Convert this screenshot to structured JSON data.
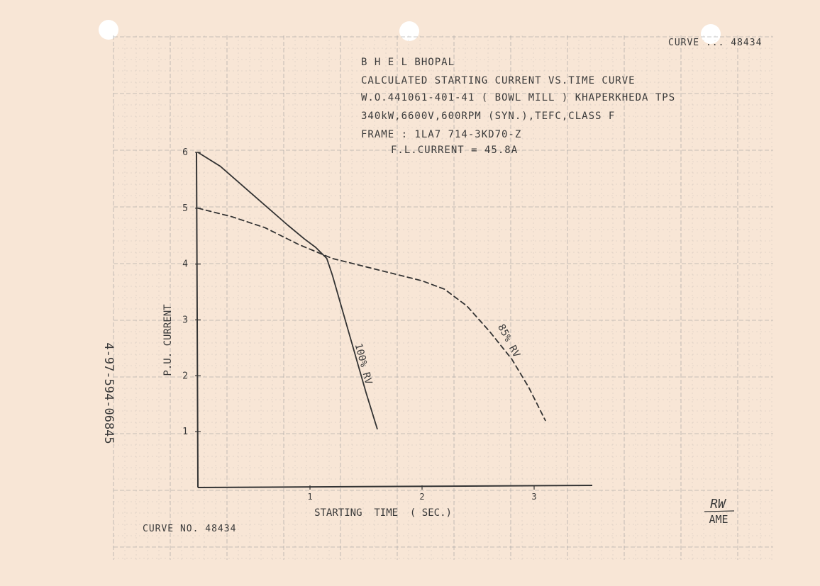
{
  "curve_no_top": "CURVE ... 48434",
  "curve_no_bottom": "CURVE NO. 48434",
  "title_lines": [
    "B H E L  BHOPAL",
    "CALCULATED STARTING CURRENT  VS.TIME CURVE",
    "W.O.441061-401-41  ( BOWL  MILL ) KHAPERKHEDA TPS",
    "340kW,6600V,600RPM (SYN.),TEFC,CLASS  F",
    "FRAME : 1LA7 714-3KD70-Z",
    "F.L.CURRENT = 45.8A"
  ],
  "side_number": "4-97-594-06845",
  "signature": {
    "initials": "RW",
    "title": "AME"
  },
  "colors": {
    "paper": "#f8e6d6",
    "grid": "#9a9a9a",
    "ink": "#3a3a3a"
  },
  "chart_data": {
    "type": "line",
    "title": "CALCULATED STARTING CURRENT  VS.TIME CURVE",
    "xlabel": "STARTING  TIME  ( SEC.)",
    "ylabel": "P.U. CURRENT",
    "xlim": [
      0,
      3.5
    ],
    "ylim": [
      0,
      6
    ],
    "x_ticks": [
      1,
      2,
      3
    ],
    "y_ticks": [
      1,
      2,
      3,
      4,
      5,
      6
    ],
    "grid": true,
    "series": [
      {
        "name": "100% RV",
        "style": "solid",
        "x": [
          0,
          0.2,
          0.4,
          0.6,
          0.8,
          0.95,
          1.05,
          1.15,
          1.2,
          1.3,
          1.4,
          1.5,
          1.6
        ],
        "y": [
          6.0,
          5.75,
          5.4,
          5.05,
          4.7,
          4.45,
          4.3,
          4.1,
          3.8,
          3.1,
          2.4,
          1.7,
          1.05
        ]
      },
      {
        "name": "85% RV",
        "style": "dashed",
        "x": [
          0,
          0.3,
          0.6,
          0.9,
          1.2,
          1.5,
          1.8,
          2.0,
          2.2,
          2.4,
          2.6,
          2.8,
          2.95,
          3.1
        ],
        "y": [
          5.0,
          4.85,
          4.65,
          4.35,
          4.1,
          3.95,
          3.8,
          3.7,
          3.55,
          3.25,
          2.8,
          2.3,
          1.8,
          1.2
        ]
      }
    ],
    "annotations": [
      {
        "text": "100% RV",
        "x": 1.45,
        "y": 2.2,
        "rotation": 75
      },
      {
        "text": "85% RV",
        "x": 2.75,
        "y": 2.6,
        "rotation": 62
      }
    ]
  }
}
